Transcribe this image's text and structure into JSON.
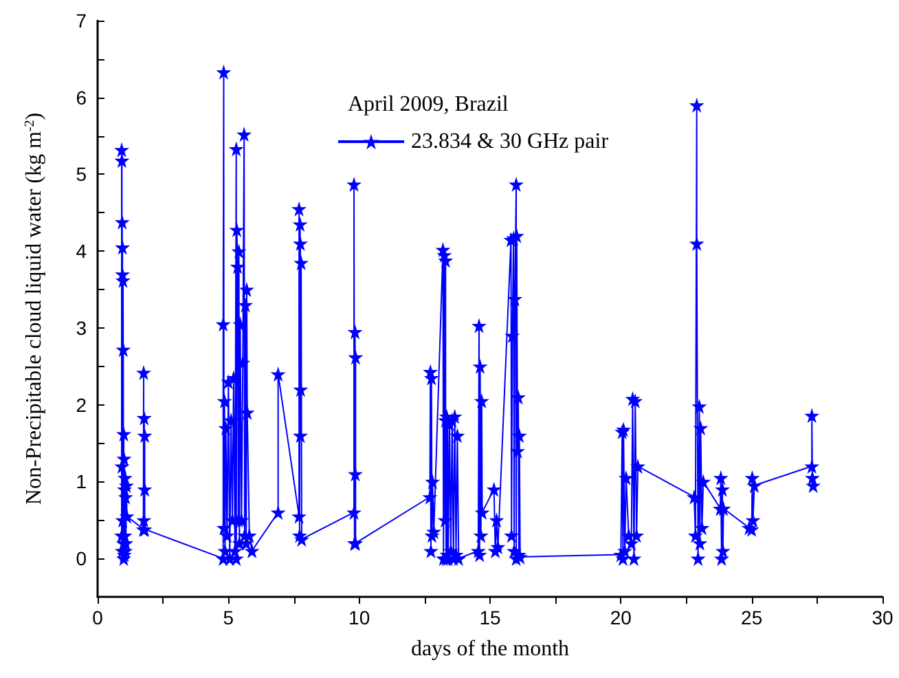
{
  "chart_data": {
    "type": "line",
    "xlabel": "days of the month",
    "ylabel": "Non-Precipitable cloud liquid water (kg m$^{-2}$)",
    "legend_title": "April 2009, Brazil",
    "legend": "top",
    "marker": "star",
    "line_style": "solid",
    "grid": false,
    "xlim": [
      0,
      30
    ],
    "xticks": [
      0,
      {
        "value": 2.5,
        "label": null
      },
      5,
      {
        "value": 7.5,
        "label": null
      },
      10,
      {
        "value": 12.5,
        "label": null
      },
      15,
      {
        "value": 17.5,
        "label": null
      },
      20,
      {
        "value": 22.5,
        "label": null
      },
      25,
      {
        "value": 27.5,
        "label": null
      },
      30
    ],
    "ylim": [
      -0.5,
      7
    ],
    "yticks": [
      0,
      {
        "value": 0.5,
        "label": null
      },
      1,
      {
        "value": 1.5,
        "label": null
      },
      2,
      {
        "value": 2.5,
        "label": null
      },
      3,
      {
        "value": 3.5,
        "label": null
      },
      4,
      {
        "value": 4.5,
        "label": null
      },
      5,
      {
        "value": 5.5,
        "label": null
      },
      6,
      {
        "value": 6.5,
        "label": null
      },
      7
    ],
    "series": [
      {
        "name": "23.834 & 30 GHz pair",
        "color": "#0000ff",
        "x": [
          0.92,
          0.92,
          0.93,
          0.93,
          0.94,
          0.94,
          0.95,
          0.95,
          0.96,
          0.97,
          0.98,
          0.99,
          1.0,
          1.0,
          1.01,
          1.02,
          1.03,
          1.04,
          1.05,
          1.06,
          1.07,
          1.08,
          1.1,
          1.12,
          1.75,
          1.76,
          1.77,
          1.78,
          1.8,
          1.8,
          1.8,
          4.8,
          4.8,
          4.82,
          4.83,
          4.85,
          4.87,
          4.9,
          4.95,
          5.0,
          5.05,
          5.1,
          5.15,
          5.2,
          5.25,
          5.3,
          5.3,
          5.32,
          5.35,
          5.38,
          5.4,
          5.42,
          5.45,
          5.5,
          5.55,
          5.6,
          5.62,
          5.65,
          5.68,
          5.7,
          5.72,
          5.8,
          5.9,
          6.9,
          6.9,
          7.7,
          7.7,
          7.72,
          7.74,
          7.75,
          7.75,
          7.76,
          7.78,
          7.8,
          9.8,
          9.8,
          9.82,
          9.84,
          9.85,
          9.86,
          9.86,
          12.7,
          12.72,
          12.74,
          12.76,
          12.78,
          12.8,
          12.85,
          13.2,
          13.22,
          13.25,
          13.28,
          13.3,
          13.3,
          13.32,
          13.34,
          13.36,
          13.38,
          13.4,
          13.45,
          13.5,
          13.55,
          13.6,
          13.65,
          13.7,
          13.75,
          13.8,
          14.55,
          14.58,
          14.6,
          14.62,
          14.65,
          14.68,
          14.7,
          15.15,
          15.2,
          15.25,
          15.3,
          15.8,
          15.82,
          15.85,
          15.9,
          15.92,
          15.95,
          16.0,
          16.0,
          16.02,
          16.05,
          16.08,
          16.1,
          16.12,
          16.15,
          20.0,
          20.05,
          20.08,
          20.1,
          20.15,
          20.2,
          20.3,
          20.4,
          20.45,
          20.5,
          20.55,
          20.6,
          20.65,
          22.8,
          22.85,
          22.9,
          22.9,
          22.95,
          23.0,
          23.02,
          23.05,
          23.1,
          23.15,
          23.8,
          23.82,
          23.85,
          23.88,
          23.9,
          23.92,
          24.9,
          25.0,
          25.02,
          25.05,
          25.1,
          27.3,
          27.3,
          27.32,
          27.35
        ],
        "values": [
          0.3,
          5.32,
          5.18,
          1.2,
          4.38,
          0.1,
          4.05,
          3.7,
          0.5,
          3.62,
          2.72,
          0.2,
          1.62,
          0.0,
          1.3,
          0.05,
          0.9,
          0.3,
          1.05,
          0.1,
          0.8,
          0.2,
          0.95,
          0.55,
          0.38,
          2.42,
          0.5,
          1.83,
          0.9,
          1.6,
          0.38,
          0.0,
          3.05,
          6.33,
          0.4,
          2.05,
          0.1,
          1.7,
          0.3,
          2.3,
          0.0,
          1.8,
          0.5,
          2.35,
          0.1,
          5.33,
          0.0,
          4.28,
          3.8,
          0.5,
          4.0,
          0.2,
          3.05,
          0.5,
          2.55,
          5.52,
          0.3,
          3.3,
          0.2,
          3.5,
          1.9,
          0.3,
          0.1,
          0.6,
          2.4,
          0.55,
          4.55,
          0.3,
          4.35,
          1.6,
          4.1,
          2.2,
          3.85,
          0.25,
          0.6,
          4.87,
          0.2,
          2.95,
          1.1,
          2.62,
          0.2,
          0.8,
          2.43,
          0.1,
          2.35,
          0.3,
          1.0,
          0.35,
          4.02,
          0.0,
          3.95,
          0.5,
          3.88,
          1.8,
          0.0,
          1.85,
          0.05,
          1.8,
          0.0,
          1.75,
          0.1,
          1.8,
          0.0,
          1.85,
          0.05,
          1.6,
          0.0,
          0.1,
          3.03,
          0.05,
          2.5,
          0.3,
          2.05,
          0.6,
          0.9,
          0.1,
          0.5,
          0.15,
          4.15,
          0.3,
          2.9,
          4.17,
          0.1,
          3.38,
          4.87,
          0.0,
          4.2,
          1.4,
          2.1,
          0.05,
          1.6,
          0.02,
          0.05,
          1.65,
          0.0,
          1.68,
          0.1,
          1.05,
          0.3,
          0.2,
          2.08,
          0.0,
          2.05,
          0.3,
          1.2,
          0.8,
          0.3,
          5.9,
          4.1,
          0.0,
          1.98,
          0.2,
          1.7,
          0.4,
          1.0,
          0.65,
          1.05,
          0.0,
          0.9,
          0.1,
          0.65,
          0.4,
          0.38,
          1.05,
          0.5,
          0.95,
          1.2,
          1.86,
          1.05,
          0.95
        ]
      }
    ]
  }
}
